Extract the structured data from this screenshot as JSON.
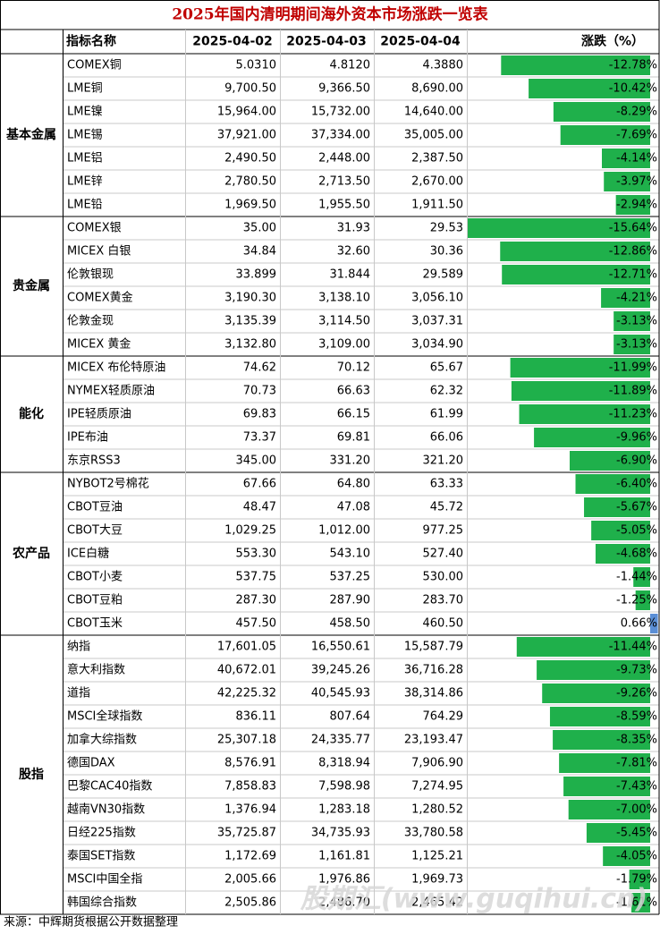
{
  "table": {
    "title": "2025年国内清明期间海外资本市场涨跌一览表",
    "header": [
      "指标名称",
      "2025-04-02",
      "2025-04-03",
      "2025-04-04",
      "涨跌（%）"
    ],
    "groups": [
      {
        "name": "基本金属",
        "rows": [
          {
            "name": "COMEX铜",
            "values": [
              "5.0310",
              "4.8120",
              "4.3880"
            ],
            "change": -12.78,
            "change_label": "-12.78%"
          },
          {
            "name": "LME铜",
            "values": [
              "9,700.50",
              "9,366.50",
              "8,690.00"
            ],
            "change": -10.42,
            "change_label": "-10.42%"
          },
          {
            "name": "LME镍",
            "values": [
              "15,964.00",
              "15,732.00",
              "14,640.00"
            ],
            "change": -8.29,
            "change_label": "-8.29%"
          },
          {
            "name": "LME锡",
            "values": [
              "37,921.00",
              "37,334.00",
              "35,005.00"
            ],
            "change": -7.69,
            "change_label": "-7.69%"
          },
          {
            "name": "LME铝",
            "values": [
              "2,490.50",
              "2,448.00",
              "2,387.50"
            ],
            "change": -4.14,
            "change_label": "-4.14%"
          },
          {
            "name": "LME锌",
            "values": [
              "2,780.50",
              "2,713.50",
              "2,670.00"
            ],
            "change": -3.97,
            "change_label": "-3.97%"
          },
          {
            "name": "LME铅",
            "values": [
              "1,969.50",
              "1,955.50",
              "1,911.50"
            ],
            "change": -2.94,
            "change_label": "-2.94%"
          }
        ]
      },
      {
        "name": "贵金属",
        "rows": [
          {
            "name": "COMEX银",
            "values": [
              "35.00",
              "31.93",
              "29.53"
            ],
            "change": -15.64,
            "change_label": "-15.64%"
          },
          {
            "name": "MICEX 白银",
            "values": [
              "34.84",
              "32.60",
              "30.36"
            ],
            "change": -12.86,
            "change_label": "-12.86%"
          },
          {
            "name": "伦敦银现",
            "values": [
              "33.899",
              "31.844",
              "29.589"
            ],
            "change": -12.71,
            "change_label": "-12.71%"
          },
          {
            "name": "COMEX黄金",
            "values": [
              "3,190.30",
              "3,138.10",
              "3,056.10"
            ],
            "change": -4.21,
            "change_label": "-4.21%"
          },
          {
            "name": "伦敦金现",
            "values": [
              "3,135.39",
              "3,114.50",
              "3,037.31"
            ],
            "change": -3.13,
            "change_label": "-3.13%"
          },
          {
            "name": "MICEX 黄金",
            "values": [
              "3,132.80",
              "3,109.00",
              "3,034.90"
            ],
            "change": -3.13,
            "change_label": "-3.13%"
          }
        ]
      },
      {
        "name": "能化",
        "rows": [
          {
            "name": "MICEX 布伦特原油",
            "values": [
              "74.62",
              "70.12",
              "65.67"
            ],
            "change": -11.99,
            "change_label": "-11.99%"
          },
          {
            "name": "NYMEX轻质原油",
            "values": [
              "70.73",
              "66.63",
              "62.32"
            ],
            "change": -11.89,
            "change_label": "-11.89%"
          },
          {
            "name": "IPE轻质原油",
            "values": [
              "69.83",
              "66.15",
              "61.99"
            ],
            "change": -11.23,
            "change_label": "-11.23%"
          },
          {
            "name": "IPE布油",
            "values": [
              "73.37",
              "69.81",
              "66.06"
            ],
            "change": -9.96,
            "change_label": "-9.96%"
          },
          {
            "name": "东京RSS3",
            "values": [
              "345.00",
              "331.20",
              "321.20"
            ],
            "change": -6.9,
            "change_label": "-6.90%"
          }
        ]
      },
      {
        "name": "农产品",
        "rows": [
          {
            "name": "NYBOT2号棉花",
            "values": [
              "67.66",
              "64.80",
              "63.33"
            ],
            "change": -6.4,
            "change_label": "-6.40%"
          },
          {
            "name": "CBOT豆油",
            "values": [
              "48.47",
              "47.08",
              "45.72"
            ],
            "change": -5.67,
            "change_label": "-5.67%"
          },
          {
            "name": "CBOT大豆",
            "values": [
              "1,029.25",
              "1,012.00",
              "977.25"
            ],
            "change": -5.05,
            "change_label": "-5.05%"
          },
          {
            "name": "ICE白糖",
            "values": [
              "553.30",
              "543.10",
              "527.40"
            ],
            "change": -4.68,
            "change_label": "-4.68%"
          },
          {
            "name": "CBOT小麦",
            "values": [
              "537.75",
              "537.25",
              "530.00"
            ],
            "change": -1.44,
            "change_label": "-1.44%"
          },
          {
            "name": "CBOT豆粕",
            "values": [
              "287.30",
              "287.90",
              "283.70"
            ],
            "change": -1.25,
            "change_label": "-1.25%"
          },
          {
            "name": "CBOT玉米",
            "values": [
              "457.50",
              "458.50",
              "460.50"
            ],
            "change": 0.66,
            "change_label": "0.66%"
          }
        ]
      },
      {
        "name": "股指",
        "rows": [
          {
            "name": "纳指",
            "values": [
              "17,601.05",
              "16,550.61",
              "15,587.79"
            ],
            "change": -11.44,
            "change_label": "-11.44%"
          },
          {
            "name": "意大利指数",
            "values": [
              "40,672.01",
              "39,245.26",
              "36,716.28"
            ],
            "change": -9.73,
            "change_label": "-9.73%"
          },
          {
            "name": "道指",
            "values": [
              "42,225.32",
              "40,545.93",
              "38,314.86"
            ],
            "change": -9.26,
            "change_label": "-9.26%"
          },
          {
            "name": "MSCI全球指数",
            "values": [
              "836.11",
              "807.64",
              "764.29"
            ],
            "change": -8.59,
            "change_label": "-8.59%"
          },
          {
            "name": "加拿大综指数",
            "values": [
              "25,307.18",
              "24,335.77",
              "23,193.47"
            ],
            "change": -8.35,
            "change_label": "-8.35%"
          },
          {
            "name": "德国DAX",
            "values": [
              "8,576.91",
              "8,318.94",
              "7,906.90"
            ],
            "change": -7.81,
            "change_label": "-7.81%"
          },
          {
            "name": "巴黎CAC40指数",
            "values": [
              "7,858.83",
              "7,598.98",
              "7,274.95"
            ],
            "change": -7.43,
            "change_label": "-7.43%"
          },
          {
            "name": "越南VN30指数",
            "values": [
              "1,376.94",
              "1,283.18",
              "1,280.52"
            ],
            "change": -7.0,
            "change_label": "-7.00%"
          },
          {
            "name": "日经225指数",
            "values": [
              "35,725.87",
              "34,735.93",
              "33,780.58"
            ],
            "change": -5.45,
            "change_label": "-5.45%"
          },
          {
            "name": "泰国SET指数",
            "values": [
              "1,172.69",
              "1,161.81",
              "1,125.21"
            ],
            "change": -4.05,
            "change_label": "-4.05%"
          },
          {
            "name": "MSCI中国全指",
            "values": [
              "2,005.66",
              "1,976.86",
              "1,969.73"
            ],
            "change": -1.79,
            "change_label": "-1.79%"
          },
          {
            "name": "韩国综合指数",
            "values": [
              "2,505.86",
              "2,486.70",
              "2,465.42"
            ],
            "change": -1.61,
            "change_label": "-1.61%"
          }
        ]
      }
    ],
    "source": "来源：中辉期货根据公开数据整理",
    "watermark": "股期汇(www.guqihui.cn)"
  }
}
